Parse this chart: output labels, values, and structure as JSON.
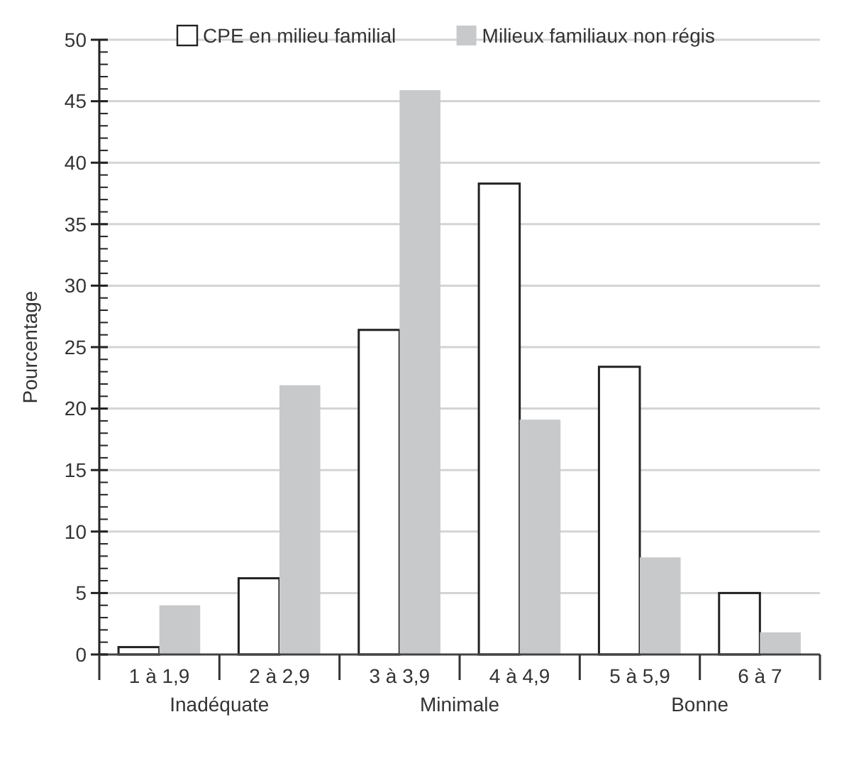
{
  "chart_data": {
    "type": "bar",
    "ylabel": "Pourcentage",
    "categories": [
      "1 à 1,9",
      "2 à 2,9",
      "3 à 3,9",
      "4 à 4,9",
      "5 à 5,9",
      "6 à 7"
    ],
    "series": [
      {
        "name": "CPE en milieu familial",
        "color": "#ffffff",
        "values": [
          0.6,
          6.2,
          26.4,
          38.3,
          23.4,
          5.0
        ]
      },
      {
        "name": "Milieux familiaux non régis",
        "color": "#c8c9cb",
        "values": [
          4.0,
          21.9,
          45.9,
          19.1,
          7.9,
          1.8
        ]
      }
    ],
    "ylim": [
      0,
      50
    ],
    "yticks": [
      0,
      5,
      10,
      15,
      20,
      25,
      30,
      35,
      40,
      45,
      50
    ],
    "grid": "y",
    "legend": "top",
    "annotations": [
      "Inadéquate",
      "Minimale",
      "Bonne"
    ]
  }
}
